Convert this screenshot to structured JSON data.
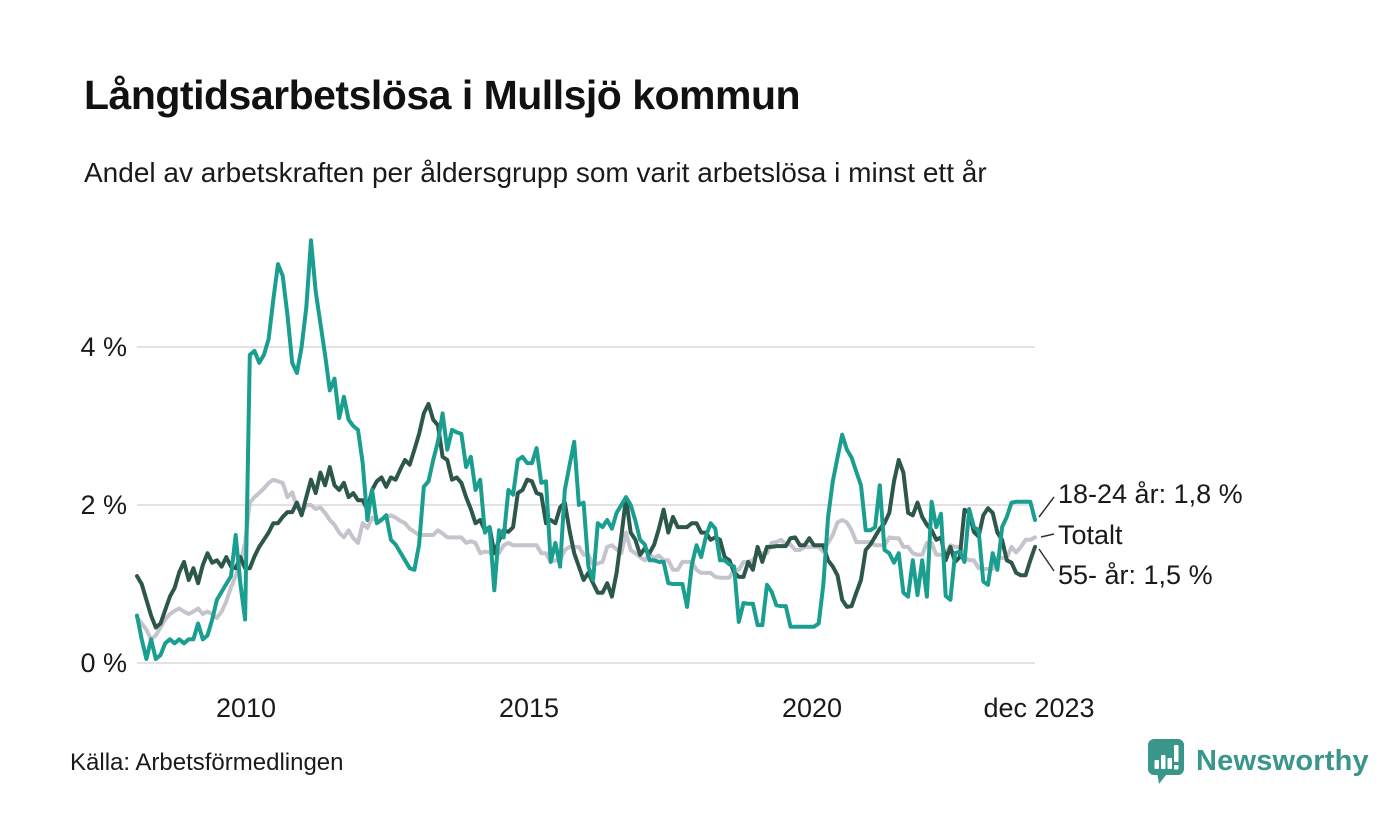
{
  "header": {
    "title": "Långtidsarbetslösa i Mullsjö kommun",
    "subtitle": "Andel av arbetskraften per åldersgrupp som varit arbetslösa i minst ett år"
  },
  "chart": {
    "yticks": [
      "4 %",
      "2 %",
      "0 %"
    ],
    "xticks": [
      "2010",
      "2015",
      "2020",
      "dec 2023"
    ],
    "annotations": [
      "18-24 år: 1,8 %",
      "Totalt",
      "55- år: 1,5 %"
    ]
  },
  "footer": {
    "source": "Källa: Arbetsförmedlingen",
    "brand": "Newsworthy"
  },
  "colors": {
    "young": "#1a9e8f",
    "total": "#c5c3cb",
    "old": "#2d574a",
    "grid": "#e2e2e2",
    "connector": "#333333",
    "brand": "#3a968b"
  },
  "chart_data": {
    "type": "line",
    "title": "Långtidsarbetslösa i Mullsjö kommun",
    "subtitle": "Andel av arbetskraften per åldersgrupp som varit arbetslösa i minst ett år",
    "x_unit": "month",
    "x_start": "2008-01",
    "x_end": "2023-12",
    "ylabel": "%",
    "ylim": [
      0,
      5.6
    ],
    "ytick_values": [
      0,
      2,
      4
    ],
    "ytick_labels": [
      "0 %",
      "2 %",
      "4 %"
    ],
    "xtick_labels": [
      "2010",
      "2015",
      "2020",
      "dec 2023"
    ],
    "grid": true,
    "legend_position": "right-edge-annotations",
    "end_labels": [
      "18-24 år: 1,8 %",
      "Totalt",
      "55- år: 1,5 %"
    ],
    "series": [
      {
        "name": "Totalt",
        "color": "#c5c3cb",
        "values": [
          0.58,
          0.5,
          0.42,
          0.3,
          0.35,
          0.45,
          0.55,
          0.62,
          0.66,
          0.69,
          0.65,
          0.62,
          0.65,
          0.69,
          0.62,
          0.65,
          0.62,
          0.57,
          0.65,
          0.78,
          0.96,
          1.1,
          1.27,
          1.52,
          2.03,
          2.1,
          2.15,
          2.21,
          2.28,
          2.32,
          2.3,
          2.28,
          2.1,
          2.16,
          1.97,
          1.91,
          2.0,
          2.0,
          1.95,
          1.97,
          1.9,
          1.81,
          1.75,
          1.65,
          1.59,
          1.68,
          1.58,
          1.52,
          1.77,
          1.71,
          1.84,
          1.8,
          1.82,
          1.84,
          1.87,
          1.84,
          1.8,
          1.77,
          1.7,
          1.66,
          1.62,
          1.62,
          1.62,
          1.62,
          1.68,
          1.64,
          1.59,
          1.59,
          1.59,
          1.59,
          1.52,
          1.54,
          1.52,
          1.39,
          1.41,
          1.4,
          1.39,
          1.39,
          1.49,
          1.52,
          1.49,
          1.49,
          1.49,
          1.49,
          1.49,
          1.49,
          1.39,
          1.39,
          1.28,
          1.3,
          1.3,
          1.43,
          1.47,
          1.47,
          1.47,
          1.37,
          1.37,
          1.24,
          1.26,
          1.28,
          1.47,
          1.49,
          1.44,
          1.39,
          1.65,
          1.43,
          1.39,
          1.34,
          1.3,
          1.37,
          1.33,
          1.36,
          1.3,
          1.3,
          1.18,
          1.18,
          1.28,
          1.28,
          1.28,
          1.18,
          1.14,
          1.14,
          1.14,
          1.09,
          1.08,
          1.08,
          1.08,
          1.18,
          1.18,
          1.28,
          1.28,
          1.3,
          1.39,
          1.39,
          1.39,
          1.52,
          1.53,
          1.56,
          1.5,
          1.5,
          1.43,
          1.43,
          1.47,
          1.47,
          1.47,
          1.47,
          1.41,
          1.52,
          1.62,
          1.78,
          1.81,
          1.78,
          1.68,
          1.53,
          1.53,
          1.53,
          1.53,
          1.49,
          1.49,
          1.49,
          1.59,
          1.58,
          1.58,
          1.47,
          1.47,
          1.39,
          1.37,
          1.37,
          1.52,
          1.52,
          1.37,
          1.37,
          1.37,
          1.49,
          1.47,
          1.47,
          1.34,
          1.3,
          1.3,
          1.2,
          1.19,
          1.19,
          1.19,
          1.33,
          1.33,
          1.33,
          1.47,
          1.4,
          1.47,
          1.56,
          1.56,
          1.59
        ]
      },
      {
        "name": "55- år",
        "color": "#2d574a",
        "values": [
          1.1,
          1.0,
          0.8,
          0.6,
          0.45,
          0.5,
          0.67,
          0.84,
          0.95,
          1.15,
          1.28,
          1.05,
          1.2,
          1.01,
          1.24,
          1.39,
          1.27,
          1.3,
          1.22,
          1.34,
          1.22,
          1.2,
          1.34,
          1.2,
          1.2,
          1.35,
          1.47,
          1.56,
          1.65,
          1.77,
          1.77,
          1.85,
          1.91,
          1.91,
          2.03,
          1.87,
          2.1,
          2.32,
          2.15,
          2.41,
          2.25,
          2.48,
          2.25,
          2.19,
          2.28,
          2.1,
          2.15,
          2.06,
          2.06,
          1.94,
          2.19,
          2.3,
          2.35,
          2.23,
          2.35,
          2.32,
          2.45,
          2.57,
          2.51,
          2.7,
          2.9,
          3.16,
          3.28,
          3.08,
          3.01,
          2.61,
          2.57,
          2.32,
          2.35,
          2.28,
          2.1,
          1.95,
          1.77,
          1.81,
          1.68,
          1.72,
          1.39,
          1.55,
          1.68,
          1.66,
          1.72,
          2.15,
          2.19,
          2.32,
          2.3,
          2.15,
          2.13,
          1.77,
          1.81,
          1.77,
          1.97,
          2.03,
          1.68,
          1.39,
          1.22,
          1.05,
          1.14,
          1.01,
          0.89,
          0.89,
          1.01,
          0.84,
          1.14,
          1.6,
          2.09,
          1.65,
          1.56,
          1.37,
          1.45,
          1.39,
          1.5,
          1.7,
          1.94,
          1.65,
          1.85,
          1.72,
          1.72,
          1.72,
          1.77,
          1.77,
          1.65,
          1.65,
          1.56,
          1.59,
          1.56,
          1.34,
          1.3,
          1.15,
          1.09,
          1.09,
          1.28,
          1.18,
          1.47,
          1.28,
          1.47,
          1.47,
          1.48,
          1.48,
          1.48,
          1.58,
          1.59,
          1.49,
          1.49,
          1.58,
          1.49,
          1.49,
          1.49,
          1.3,
          1.22,
          1.11,
          0.8,
          0.71,
          0.72,
          0.89,
          1.05,
          1.43,
          1.5,
          1.6,
          1.7,
          1.77,
          1.9,
          2.3,
          2.57,
          2.41,
          1.9,
          1.87,
          2.03,
          1.85,
          1.75,
          1.68,
          1.56,
          1.59,
          1.3,
          1.47,
          1.28,
          1.34,
          1.94,
          1.9,
          1.66,
          1.6,
          1.87,
          1.96,
          1.9,
          1.65,
          1.56,
          1.3,
          1.27,
          1.14,
          1.11,
          1.11,
          1.3,
          1.47
        ]
      },
      {
        "name": "18-24 år",
        "color": "#1a9e8f",
        "values": [
          0.6,
          0.3,
          0.05,
          0.3,
          0.05,
          0.1,
          0.25,
          0.3,
          0.25,
          0.3,
          0.25,
          0.3,
          0.3,
          0.5,
          0.3,
          0.35,
          0.55,
          0.8,
          0.9,
          1.0,
          1.1,
          1.62,
          1.0,
          0.55,
          3.9,
          3.95,
          3.8,
          3.9,
          4.1,
          4.6,
          5.05,
          4.9,
          4.4,
          3.8,
          3.67,
          4.0,
          4.5,
          5.35,
          4.7,
          4.3,
          3.9,
          3.45,
          3.6,
          3.1,
          3.37,
          3.08,
          3.0,
          2.95,
          2.53,
          1.81,
          2.19,
          1.77,
          1.81,
          1.87,
          1.56,
          1.5,
          1.4,
          1.3,
          1.2,
          1.18,
          1.5,
          2.23,
          2.3,
          2.57,
          2.8,
          3.16,
          2.7,
          2.95,
          2.92,
          2.9,
          2.48,
          2.61,
          2.19,
          2.32,
          1.65,
          1.72,
          0.92,
          1.68,
          1.59,
          2.19,
          2.13,
          2.57,
          2.61,
          2.53,
          2.53,
          2.72,
          2.28,
          2.3,
          1.28,
          1.52,
          1.22,
          2.19,
          2.5,
          2.8,
          2.0,
          2.03,
          1.22,
          1.05,
          1.77,
          1.72,
          1.81,
          1.7,
          1.9,
          2.0,
          2.1,
          2.0,
          1.8,
          1.56,
          1.5,
          1.3,
          1.3,
          1.28,
          1.28,
          1.01,
          1.0,
          1.0,
          1.0,
          0.71,
          1.24,
          1.49,
          1.34,
          1.6,
          1.77,
          1.7,
          1.3,
          1.3,
          1.25,
          1.22,
          0.52,
          0.76,
          0.75,
          0.75,
          0.48,
          0.48,
          0.99,
          0.9,
          0.73,
          0.72,
          0.72,
          0.46,
          0.46,
          0.46,
          0.46,
          0.46,
          0.46,
          0.5,
          1.0,
          1.85,
          2.3,
          2.6,
          2.89,
          2.7,
          2.6,
          2.42,
          2.25,
          1.68,
          1.68,
          1.72,
          2.25,
          1.43,
          1.39,
          1.27,
          1.39,
          0.89,
          0.84,
          1.3,
          0.86,
          1.3,
          0.84,
          2.04,
          1.72,
          1.89,
          0.85,
          0.8,
          1.39,
          1.41,
          1.28,
          1.95,
          1.72,
          1.68,
          1.03,
          0.99,
          1.39,
          1.18,
          1.72,
          1.85,
          2.03,
          2.04,
          2.04,
          2.04,
          2.04,
          1.81
        ]
      }
    ]
  }
}
